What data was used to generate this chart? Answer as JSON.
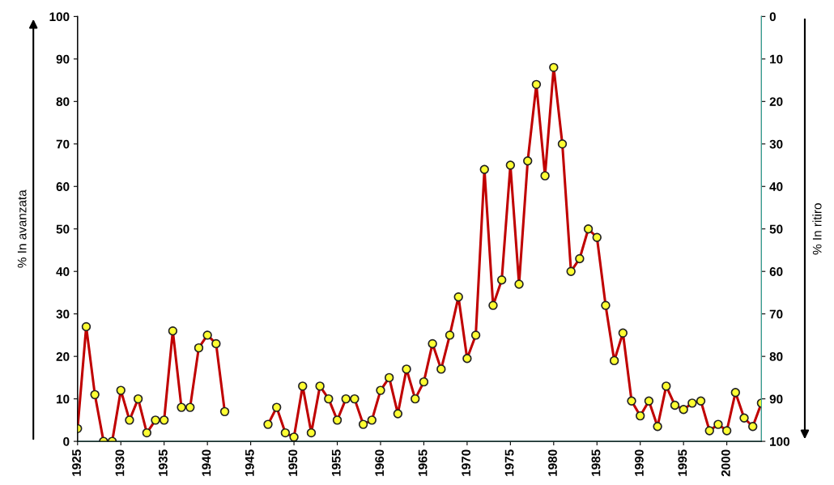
{
  "chart_data": {
    "type": "line",
    "ylabel": "% In avanzata",
    "y2label": "% In ritiro",
    "x": [
      1925,
      1926,
      1927,
      1928,
      1929,
      1930,
      1931,
      1932,
      1933,
      1934,
      1935,
      1936,
      1937,
      1938,
      1939,
      1940,
      1941,
      1942,
      1943,
      1944,
      1945,
      1946,
      1947,
      1948,
      1949,
      1950,
      1951,
      1952,
      1953,
      1954,
      1955,
      1956,
      1957,
      1958,
      1959,
      1960,
      1961,
      1962,
      1963,
      1964,
      1965,
      1966,
      1967,
      1968,
      1969,
      1970,
      1971,
      1972,
      1973,
      1974,
      1975,
      1976,
      1977,
      1978,
      1979,
      1980,
      1981,
      1982,
      1983,
      1984,
      1985,
      1986,
      1987,
      1988,
      1989,
      1990,
      1991,
      1992,
      1993,
      1994,
      1995,
      1996,
      1997,
      1998,
      1999,
      2000,
      2001,
      2002,
      2003,
      2004
    ],
    "series": [
      {
        "color": "#c00000",
        "values": [
          3,
          27,
          11,
          0,
          0,
          12,
          5,
          10,
          2,
          5,
          5,
          26,
          8,
          8,
          22,
          25,
          23,
          7,
          null,
          null,
          null,
          null,
          4,
          8,
          2,
          1,
          13,
          2,
          13,
          10,
          5,
          10,
          10,
          4,
          5,
          12,
          15,
          6.5,
          17,
          10,
          14,
          23,
          17,
          25,
          34,
          19.5,
          25,
          64,
          32,
          38,
          65,
          37,
          66,
          84,
          62.5,
          88,
          70,
          40,
          43,
          50,
          48,
          32,
          19,
          25.5,
          9.5,
          6,
          9.5,
          3.5,
          13,
          8.5,
          7.5,
          9,
          9.5,
          2.5,
          4,
          2.5,
          11.5,
          5.5,
          3.5,
          9
        ]
      }
    ],
    "marker": "circle",
    "line_style": "solid",
    "grid": false,
    "legend": false,
    "xlim": [
      1925,
      2004
    ],
    "xticks": [
      1925,
      1930,
      1935,
      1940,
      1945,
      1950,
      1955,
      1960,
      1965,
      1970,
      1975,
      1980,
      1985,
      1990,
      1995,
      2000
    ],
    "ylim": [
      0,
      100
    ],
    "yticks": [
      0,
      10,
      20,
      30,
      40,
      50,
      60,
      70,
      80,
      90,
      100
    ],
    "y2lim": [
      100,
      0
    ],
    "y2ticks": [
      0,
      10,
      20,
      30,
      40,
      50,
      60,
      70,
      80,
      90,
      100
    ]
  }
}
